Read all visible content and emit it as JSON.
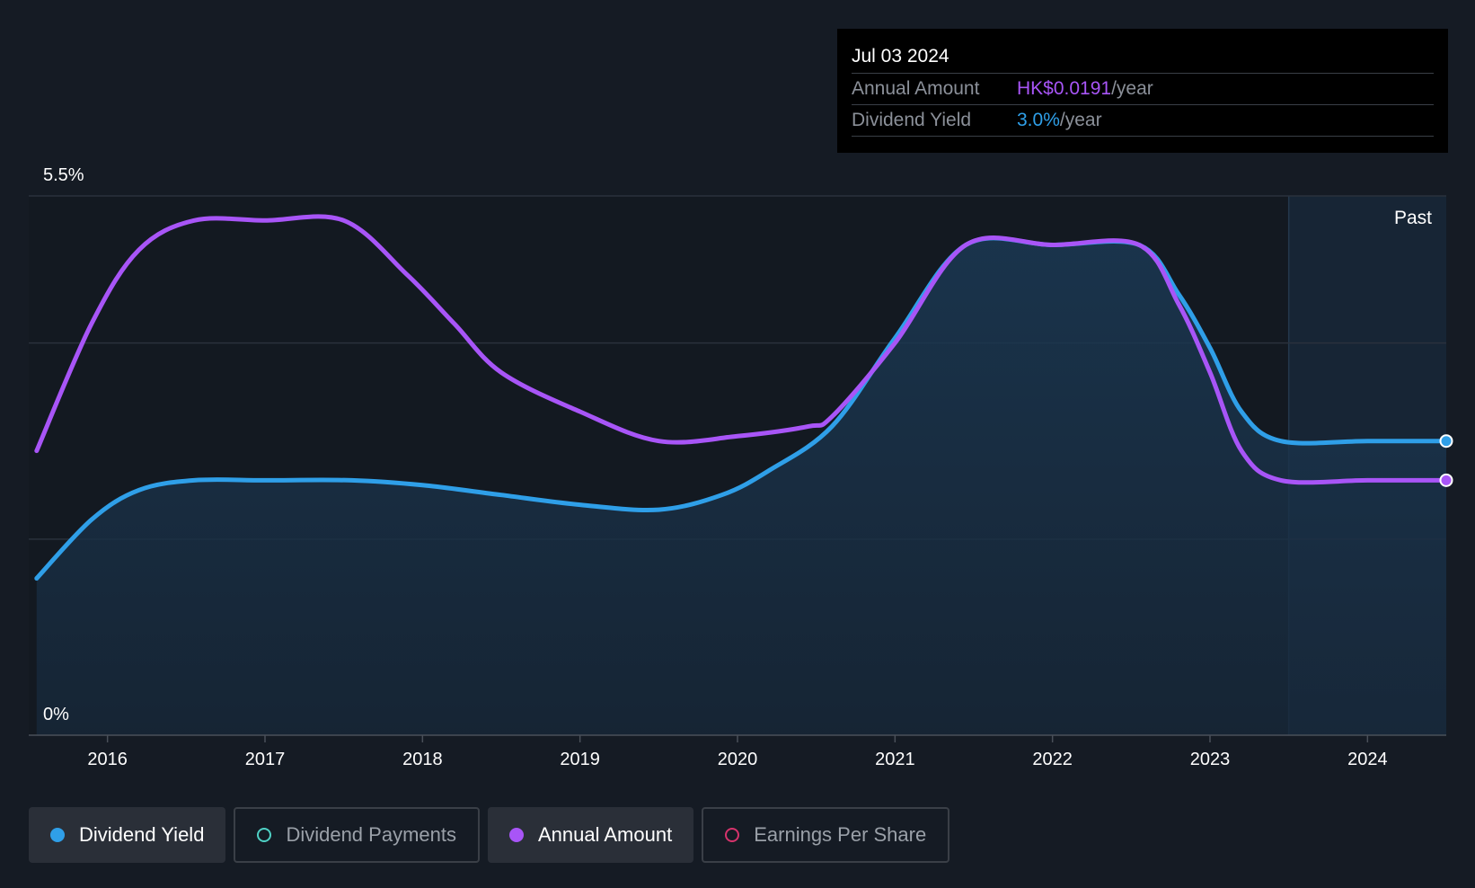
{
  "tooltip": {
    "date": "Jul 03 2024",
    "rows": [
      {
        "label": "Annual Amount",
        "value": "HK$0.0191",
        "unit": "/year"
      },
      {
        "label": "Dividend Yield",
        "value": "3.0%",
        "unit": "/year"
      }
    ]
  },
  "legend": [
    {
      "label": "Dividend Yield",
      "color": "#2f9fe8",
      "active": true,
      "filled": true
    },
    {
      "label": "Dividend Payments",
      "color": "#4fd1c5",
      "active": false,
      "filled": false
    },
    {
      "label": "Annual Amount",
      "color": "#a855f7",
      "active": true,
      "filled": true
    },
    {
      "label": "Earnings Per Share",
      "color": "#d6336c",
      "active": false,
      "filled": false
    }
  ],
  "chart_data": {
    "type": "line",
    "y_top_label": "5.5%",
    "y_bottom_label": "0%",
    "ylim": [
      0,
      5.5
    ],
    "xlim": [
      2015.5,
      2024.5
    ],
    "x_ticks": [
      "2016",
      "2017",
      "2018",
      "2019",
      "2020",
      "2021",
      "2022",
      "2023",
      "2024"
    ],
    "past_label": "Past",
    "past_start": 2023.5,
    "grid": true,
    "series": [
      {
        "name": "Dividend Yield",
        "color": "#2f9fe8",
        "area": true,
        "x": [
          2015.55,
          2015.9,
          2016.2,
          2016.55,
          2017.0,
          2017.55,
          2018.0,
          2018.5,
          2019.0,
          2019.5,
          2019.9,
          2020.2,
          2020.6,
          2021.0,
          2021.45,
          2022.0,
          2022.55,
          2022.8,
          2023.0,
          2023.2,
          2023.45,
          2024.0,
          2024.5
        ],
        "y": [
          1.6,
          2.2,
          2.5,
          2.6,
          2.6,
          2.6,
          2.55,
          2.45,
          2.35,
          2.3,
          2.45,
          2.7,
          3.15,
          4.05,
          5.0,
          5.0,
          5.0,
          4.5,
          3.95,
          3.3,
          3.0,
          3.0,
          3.0
        ]
      },
      {
        "name": "Annual Amount",
        "color": "#a855f7",
        "area": false,
        "x": [
          2015.55,
          2015.9,
          2016.2,
          2016.55,
          2017.0,
          2017.5,
          2017.9,
          2018.2,
          2018.5,
          2019.0,
          2019.5,
          2020.0,
          2020.45,
          2020.6,
          2021.0,
          2021.45,
          2022.0,
          2022.55,
          2022.8,
          2023.0,
          2023.2,
          2023.45,
          2024.0,
          2024.5
        ],
        "y": [
          2.9,
          4.2,
          4.95,
          5.25,
          5.25,
          5.25,
          4.7,
          4.2,
          3.7,
          3.3,
          3.0,
          3.05,
          3.15,
          3.25,
          4.0,
          5.0,
          5.0,
          5.0,
          4.4,
          3.7,
          2.9,
          2.6,
          2.6,
          2.6
        ]
      }
    ]
  }
}
